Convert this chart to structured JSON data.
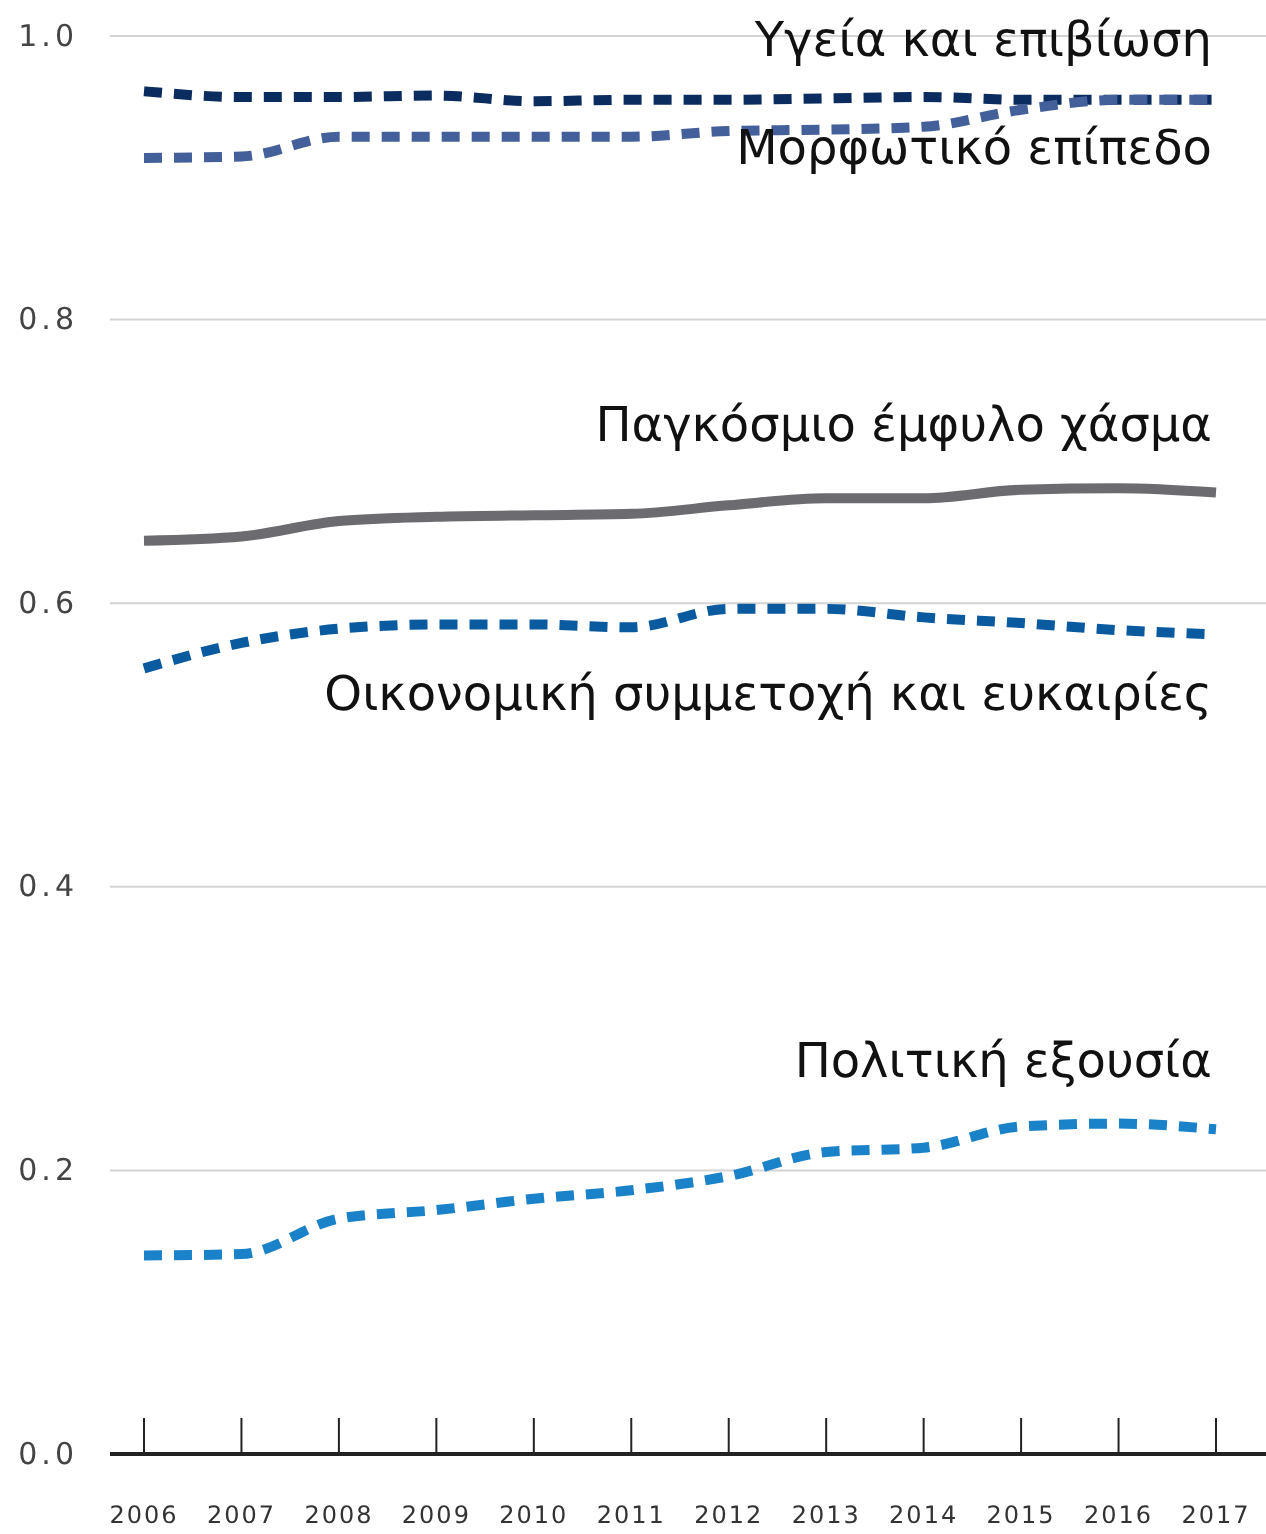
{
  "chart_data": {
    "type": "line",
    "categories": [
      "2006",
      "2007",
      "2008",
      "2009",
      "2010",
      "2011",
      "2012",
      "2013",
      "2014",
      "2015",
      "2016",
      "2017"
    ],
    "ylim": [
      0,
      1
    ],
    "yticks": [
      {
        "value": 0,
        "label": "0.0"
      },
      {
        "value": 0.2,
        "label": "0.2"
      },
      {
        "value": 0.4,
        "label": "0.4"
      },
      {
        "value": 0.6,
        "label": "0.6"
      },
      {
        "value": 0.8,
        "label": "0.8"
      },
      {
        "value": 1,
        "label": "1.0"
      }
    ],
    "grid": "y",
    "marker": "none",
    "series": [
      {
        "name": "Υγεία και επιβίωση",
        "color": "#0b2c5f",
        "line_style": "dashed",
        "values": [
          0.961,
          0.957,
          0.957,
          0.958,
          0.954,
          0.955,
          0.955,
          0.956,
          0.957,
          0.955,
          0.955,
          0.955
        ]
      },
      {
        "name": "Μορφωτικό επίπεδο",
        "color": "#44609a",
        "line_style": "dashed",
        "values": [
          0.914,
          0.915,
          0.929,
          0.929,
          0.929,
          0.929,
          0.933,
          0.934,
          0.936,
          0.948,
          0.955,
          0.955
        ]
      },
      {
        "name": "Παγκόσμιο έμφυλο χάσμα",
        "color": "#6b6b70",
        "line_style": "solid",
        "values": [
          0.644,
          0.647,
          0.658,
          0.661,
          0.662,
          0.663,
          0.669,
          0.674,
          0.674,
          0.68,
          0.681,
          0.678
        ]
      },
      {
        "name": "Οικονομική συμμετοχή και ευκαιρίες",
        "color": "#0a5aa0",
        "line_style": "dashed",
        "values": [
          0.554,
          0.572,
          0.582,
          0.585,
          0.585,
          0.583,
          0.596,
          0.596,
          0.59,
          0.586,
          0.581,
          0.578
        ]
      },
      {
        "name": "Πολιτική εξουσία",
        "color": "#1a82c8",
        "line_style": "dashed",
        "values": [
          0.14,
          0.141,
          0.166,
          0.172,
          0.18,
          0.186,
          0.196,
          0.213,
          0.216,
          0.231,
          0.233,
          0.229
        ]
      }
    ]
  }
}
